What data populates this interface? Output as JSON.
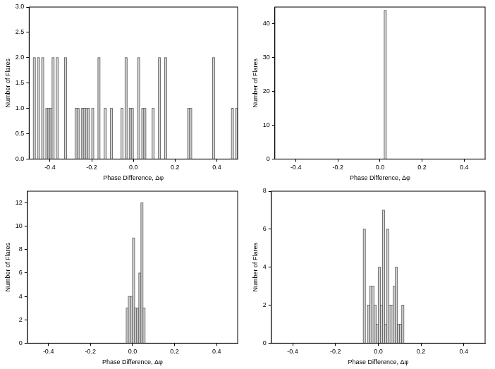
{
  "chart_data": [
    {
      "type": "histogram",
      "x_label": "Phase Difference, Δφ",
      "y_label": "Number of Flares",
      "color": "#d3d3d3",
      "grid": false,
      "xlim": [
        -0.5,
        0.5
      ],
      "xticks": [
        -0.4,
        -0.2,
        {
          "value": 0,
          "label": "0.0"
        },
        0.2,
        0.4
      ],
      "ylim": [
        0,
        3
      ],
      "yticks": [
        {
          "value": 0,
          "label": "0.0"
        },
        0.5,
        {
          "value": 1,
          "label": "1.0"
        },
        1.5,
        {
          "value": 2,
          "label": "2.0"
        },
        2.5,
        {
          "value": 3,
          "label": "3.0"
        }
      ],
      "bins": [
        -0.5,
        -0.49,
        -0.48,
        -0.47,
        -0.46,
        -0.45,
        -0.44,
        -0.43,
        -0.42,
        -0.41,
        -0.4,
        -0.39,
        -0.38,
        -0.37,
        -0.36,
        -0.35,
        -0.34,
        -0.33,
        -0.32,
        -0.31,
        -0.3,
        -0.29,
        -0.28,
        -0.27,
        -0.26,
        -0.25,
        -0.24,
        -0.23,
        -0.22,
        -0.21,
        -0.2,
        -0.19,
        -0.18,
        -0.17,
        -0.16,
        -0.15,
        -0.14,
        -0.13,
        -0.12,
        -0.11,
        -0.1,
        -0.09,
        -0.08,
        -0.07,
        -0.06,
        -0.05,
        -0.04,
        -0.03,
        -0.02,
        -0.01,
        0,
        0.01,
        0.02,
        0.03,
        0.04,
        0.05,
        0.06,
        0.07,
        0.08,
        0.09,
        0.1,
        0.11,
        0.12,
        0.13,
        0.14,
        0.15,
        0.16,
        0.17,
        0.18,
        0.19,
        0.2,
        0.21,
        0.22,
        0.23,
        0.24,
        0.25,
        0.26,
        0.27,
        0.28,
        0.29,
        0.3,
        0.31,
        0.32,
        0.33,
        0.34,
        0.35,
        0.36,
        0.37,
        0.38,
        0.39,
        0.4,
        0.41,
        0.42,
        0.43,
        0.44,
        0.45,
        0.46,
        0.47,
        0.48,
        0.49,
        0.5
      ],
      "counts": [
        0,
        0,
        2,
        0,
        2,
        0,
        2,
        0,
        1,
        1,
        1,
        2,
        0,
        2,
        0,
        0,
        0,
        2,
        0,
        0,
        0,
        0,
        1,
        1,
        0,
        1,
        1,
        1,
        1,
        0,
        1,
        0,
        0,
        2,
        0,
        0,
        1,
        0,
        0,
        1,
        0,
        0,
        0,
        0,
        1,
        0,
        2,
        0,
        1,
        1,
        0,
        0,
        2,
        0,
        1,
        1,
        0,
        0,
        0,
        1,
        0,
        0,
        2,
        0,
        0,
        2,
        0,
        0,
        0,
        0,
        0,
        0,
        0,
        0,
        0,
        0,
        1,
        1,
        0,
        0,
        0,
        0,
        0,
        0,
        0,
        0,
        0,
        0,
        2,
        0,
        0,
        0,
        0,
        0,
        0,
        0,
        0,
        1,
        0,
        1
      ]
    },
    {
      "type": "histogram",
      "x_label": "Phase Difference, Δφ",
      "y_label": "Number of Flares",
      "color": "#d3d3d3",
      "grid": false,
      "xlim": [
        -0.5,
        0.5
      ],
      "xticks": [
        -0.4,
        -0.2,
        {
          "value": 0,
          "label": "0.0"
        },
        0.2,
        0.4
      ],
      "ylim": [
        0,
        45
      ],
      "yticks": [
        0,
        10,
        20,
        30,
        40
      ],
      "bins": [
        0.02,
        0.03
      ],
      "counts": [
        44
      ]
    },
    {
      "type": "histogram",
      "x_label": "Phase Difference, Δφ",
      "y_label": "Number of Flares",
      "color": "#d3d3d3",
      "grid": false,
      "xlim": [
        -0.5,
        0.5
      ],
      "xticks": [
        -0.4,
        -0.2,
        {
          "value": 0,
          "label": "0.0"
        },
        0.2,
        0.4
      ],
      "ylim": [
        0,
        13
      ],
      "yticks": [
        0,
        2,
        4,
        6,
        8,
        10,
        12
      ],
      "bins": [
        -0.03,
        -0.02,
        -0.01,
        0,
        0.01,
        0.02,
        0.03,
        0.04,
        0.05,
        0.06
      ],
      "counts": [
        3,
        4,
        4,
        9,
        3,
        3,
        6,
        12,
        3
      ]
    },
    {
      "type": "histogram",
      "x_label": "Phase Difference, Δφ",
      "y_label": "Number of Flares",
      "color": "#d3d3d3",
      "grid": false,
      "xlim": [
        -0.5,
        0.5
      ],
      "xticks": [
        -0.4,
        -0.2,
        {
          "value": 0,
          "label": "0.0"
        },
        0.2,
        0.4
      ],
      "ylim": [
        0,
        8
      ],
      "yticks": [
        0,
        2,
        4,
        6,
        8
      ],
      "bins": [
        -0.07,
        -0.06,
        -0.05,
        -0.04,
        -0.03,
        -0.02,
        -0.01,
        0,
        0.01,
        0.02,
        0.03,
        0.04,
        0.05,
        0.06,
        0.07,
        0.08,
        0.09,
        0.1,
        0.11,
        0.12
      ],
      "counts": [
        6,
        0,
        2,
        3,
        3,
        2,
        1,
        4,
        2,
        7,
        1,
        6,
        2,
        2,
        3,
        4,
        1,
        1,
        2
      ]
    }
  ]
}
